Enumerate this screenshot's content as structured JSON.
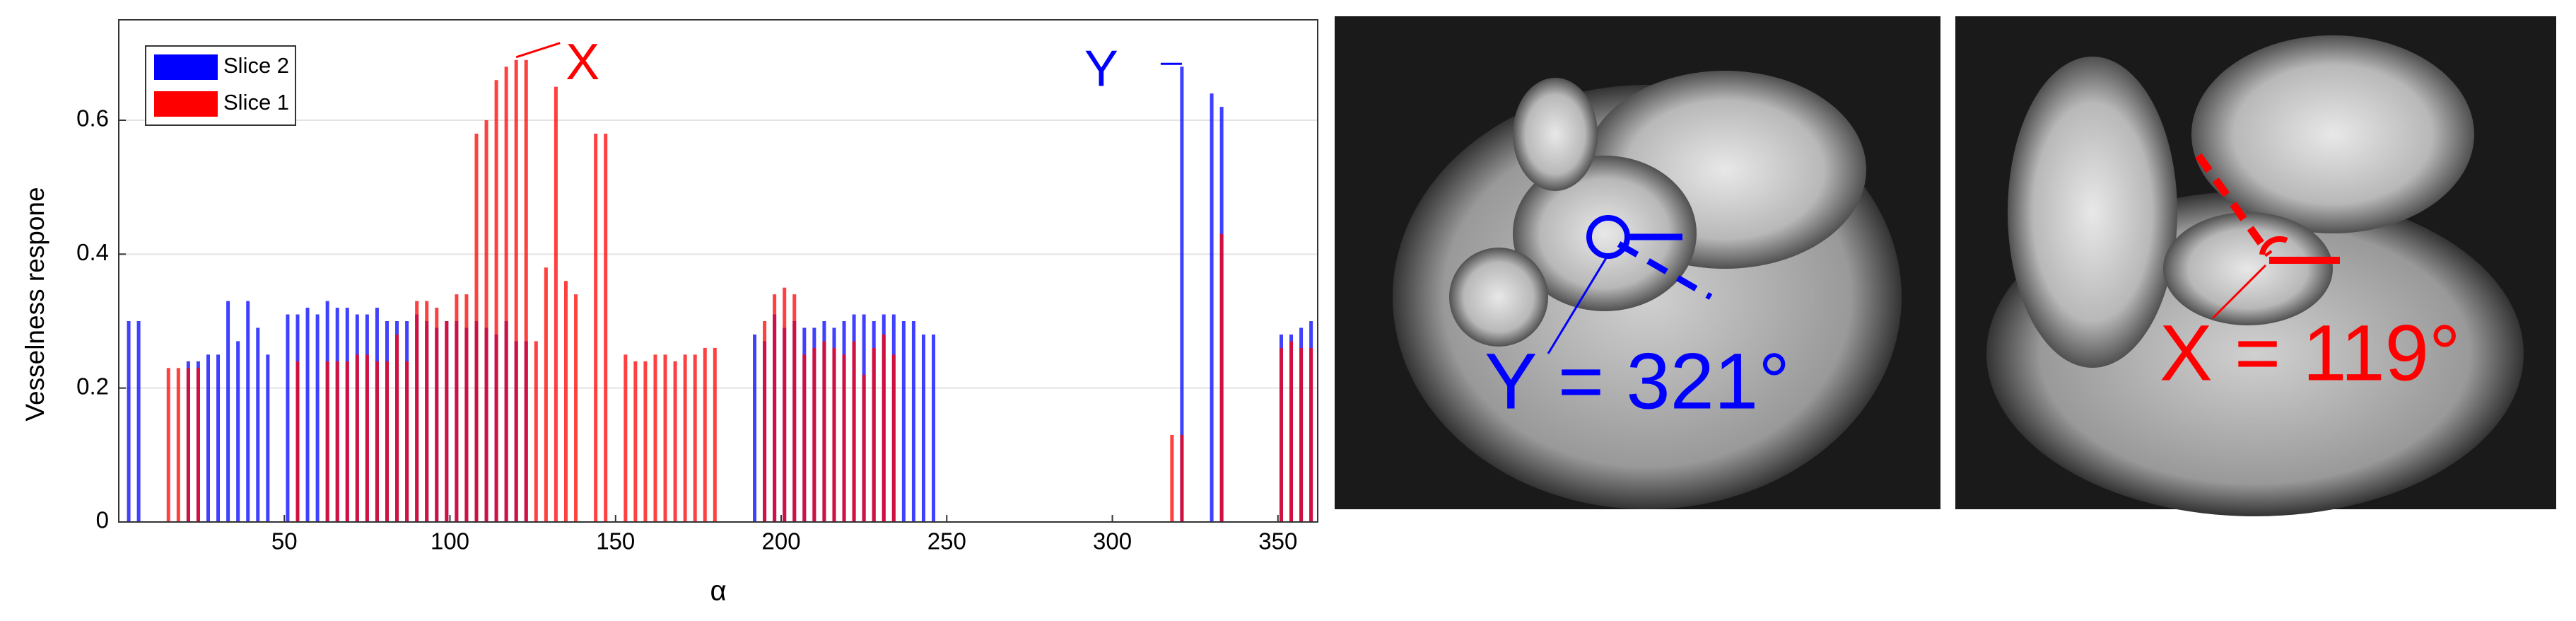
{
  "chart_data": {
    "type": "bar",
    "xlabel": "α",
    "ylabel": "Vesselness respone",
    "x": [
      3,
      6,
      9,
      12,
      15,
      18,
      21,
      24,
      27,
      30,
      33,
      36,
      39,
      42,
      45,
      48,
      51,
      54,
      57,
      60,
      63,
      66,
      69,
      72,
      75,
      78,
      81,
      84,
      87,
      90,
      93,
      96,
      99,
      102,
      105,
      108,
      111,
      114,
      117,
      120,
      123,
      126,
      129,
      132,
      135,
      138,
      141,
      144,
      147,
      150,
      153,
      156,
      159,
      162,
      165,
      168,
      171,
      174,
      177,
      180,
      183,
      186,
      189,
      192,
      195,
      198,
      201,
      204,
      207,
      210,
      213,
      216,
      219,
      222,
      225,
      228,
      231,
      234,
      237,
      240,
      243,
      246,
      249,
      252,
      255,
      258,
      261,
      264,
      267,
      270,
      273,
      276,
      279,
      282,
      285,
      288,
      291,
      294,
      297,
      300,
      303,
      306,
      309,
      312,
      315,
      318,
      321,
      324,
      327,
      330,
      333,
      336,
      339,
      342,
      345,
      348,
      351,
      354,
      357,
      360
    ],
    "series": [
      {
        "name": "Slice 2",
        "color": "#0000ff",
        "values": [
          0.3,
          0.3,
          null,
          null,
          null,
          null,
          0.24,
          0.24,
          0.25,
          0.25,
          0.33,
          0.27,
          0.33,
          0.29,
          0.25,
          null,
          0.31,
          0.31,
          0.32,
          0.31,
          0.33,
          0.32,
          0.32,
          0.31,
          0.31,
          0.32,
          0.3,
          0.3,
          0.3,
          0.31,
          0.3,
          0.29,
          0.3,
          0.3,
          0.29,
          0.3,
          0.29,
          0.28,
          0.3,
          0.27,
          0.27,
          null,
          null,
          null,
          null,
          null,
          null,
          null,
          null,
          null,
          null,
          null,
          null,
          null,
          null,
          null,
          null,
          null,
          null,
          null,
          null,
          null,
          null,
          0.28,
          0.27,
          0.31,
          0.29,
          0.3,
          0.29,
          0.29,
          0.3,
          0.29,
          0.3,
          0.31,
          0.31,
          0.3,
          0.31,
          0.31,
          0.3,
          0.3,
          0.28,
          0.28,
          null,
          null,
          null,
          null,
          null,
          null,
          null,
          null,
          null,
          null,
          null,
          null,
          null,
          null,
          null,
          null,
          null,
          null,
          null,
          null,
          null,
          null,
          null,
          null,
          0.68,
          null,
          null,
          0.64,
          0.62,
          null,
          null,
          null,
          null,
          null,
          0.28,
          0.28,
          0.29,
          0.3
        ]
      },
      {
        "name": "Slice 1",
        "color": "#ff0000",
        "values": [
          null,
          null,
          null,
          null,
          0.23,
          0.23,
          0.23,
          0.23,
          null,
          null,
          null,
          null,
          null,
          null,
          null,
          null,
          null,
          0.24,
          null,
          null,
          0.24,
          0.24,
          0.24,
          0.25,
          0.25,
          0.24,
          0.24,
          0.28,
          0.24,
          0.33,
          0.33,
          0.32,
          0.3,
          0.34,
          0.34,
          0.58,
          0.6,
          0.66,
          0.68,
          0.69,
          0.69,
          0.27,
          0.38,
          0.65,
          0.36,
          0.34,
          null,
          0.58,
          0.58,
          null,
          0.25,
          0.24,
          0.24,
          0.25,
          0.25,
          0.24,
          0.25,
          0.25,
          0.26,
          0.26,
          null,
          null,
          null,
          null,
          0.3,
          0.34,
          0.35,
          0.34,
          0.25,
          0.26,
          0.27,
          0.26,
          0.25,
          0.27,
          0.22,
          0.26,
          0.28,
          0.25,
          null,
          null,
          null,
          null,
          null,
          null,
          null,
          null,
          null,
          null,
          null,
          null,
          null,
          null,
          null,
          null,
          null,
          null,
          null,
          null,
          null,
          null,
          null,
          null,
          null,
          null,
          null,
          0.13,
          0.13,
          null,
          null,
          null,
          0.43,
          null,
          null,
          null,
          null,
          null,
          0.26,
          0.27,
          0.26,
          0.26
        ]
      }
    ],
    "xlim": [
      0,
      362
    ],
    "xticks": [
      50,
      100,
      150,
      200,
      250,
      300,
      350
    ],
    "ylim": [
      0,
      0.75
    ],
    "yticks": [
      0,
      0.2,
      0.4,
      0.6
    ],
    "grid": true,
    "legend": "upper left",
    "annotations": [
      {
        "text": "X",
        "color": "#ff0000"
      },
      {
        "text": "Y",
        "color": "#0000ff"
      }
    ]
  },
  "images": [
    {
      "label": "Y = 321°"
    },
    {
      "label": "X = 119°"
    }
  ]
}
